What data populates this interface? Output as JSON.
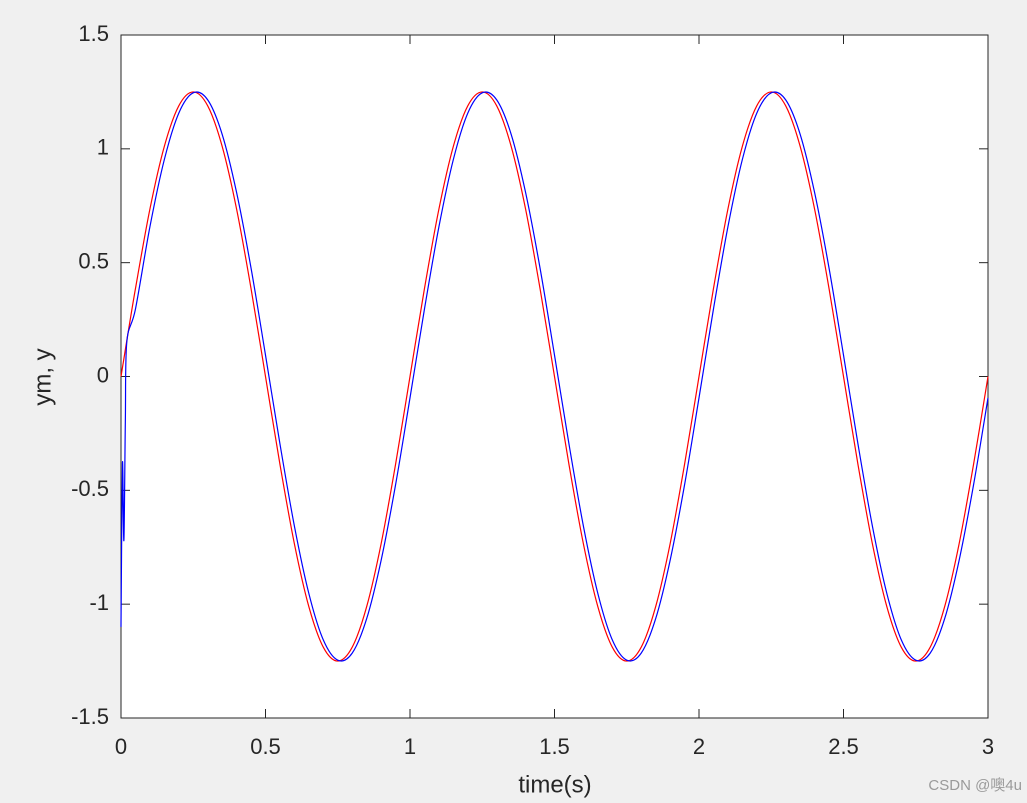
{
  "chart_data": {
    "type": "line",
    "x": [
      0,
      0.005,
      0.01,
      0.015,
      0.02,
      0.05,
      0.1,
      0.15,
      0.2,
      0.25,
      0.3,
      0.35,
      0.4,
      0.45,
      0.5,
      0.55,
      0.6,
      0.65,
      0.7,
      0.75,
      0.8,
      0.85,
      0.9,
      0.95,
      1,
      1.05,
      1.1,
      1.15,
      1.2,
      1.25,
      1.3,
      1.35,
      1.4,
      1.45,
      1.5,
      1.55,
      1.6,
      1.65,
      1.7,
      1.75,
      1.8,
      1.85,
      1.9,
      1.95,
      2,
      2.05,
      2.1,
      2.15,
      2.2,
      2.25,
      2.3,
      2.35,
      2.4,
      2.45,
      2.5,
      2.55,
      2.6,
      2.65,
      2.7,
      2.75,
      2.8,
      2.85,
      2.9,
      2.95,
      3
    ],
    "series": [
      {
        "color": "#ff0000",
        "values": [
          0,
          0.039,
          0.078,
          0.118,
          0.157,
          0.386,
          0.735,
          1.011,
          1.189,
          1.25,
          1.189,
          1.011,
          0.735,
          0.386,
          0,
          -0.386,
          -0.735,
          -1.011,
          -1.189,
          -1.25,
          -1.189,
          -1.011,
          -0.735,
          -0.386,
          0,
          0.386,
          0.735,
          1.011,
          1.189,
          1.25,
          1.189,
          1.011,
          0.735,
          0.386,
          0,
          -0.386,
          -0.735,
          -1.011,
          -1.189,
          -1.25,
          -1.189,
          -1.011,
          -0.735,
          -0.386,
          0,
          0.386,
          0.735,
          1.011,
          1.189,
          1.25,
          1.189,
          1.011,
          0.735,
          0.386,
          0,
          -0.386,
          -0.735,
          -1.011,
          -1.189,
          -1.25,
          -1.189,
          -1.011,
          -0.735,
          -0.386,
          0
        ]
      },
      {
        "color": "#0000ff",
        "values": [
          -1.1,
          -0.38,
          -0.72,
          -0.2,
          0.15,
          0.296,
          0.657,
          0.953,
          1.157,
          1.246,
          1.215,
          1.064,
          0.808,
          0.476,
          0.094,
          -0.296,
          -0.657,
          -0.953,
          -1.157,
          -1.246,
          -1.215,
          -1.064,
          -0.808,
          -0.476,
          -0.094,
          0.296,
          0.657,
          0.953,
          1.157,
          1.246,
          1.215,
          1.064,
          0.808,
          0.476,
          0.094,
          -0.296,
          -0.657,
          -0.953,
          -1.157,
          -1.246,
          -1.215,
          -1.064,
          -0.808,
          -0.476,
          -0.094,
          0.296,
          0.657,
          0.953,
          1.157,
          1.246,
          1.215,
          1.064,
          0.808,
          0.476,
          0.094,
          -0.296,
          -0.657,
          -0.953,
          -1.157,
          -1.246,
          -1.215,
          -1.064,
          -0.808,
          -0.476,
          -0.094
        ]
      }
    ],
    "xlabel": "time(s)",
    "ylabel": "ym, y",
    "xlim": [
      0,
      3
    ],
    "xticks": [
      0,
      0.5,
      1,
      1.5,
      2,
      2.5,
      3
    ],
    "ylim": [
      -1.5,
      1.5
    ],
    "yticks": [
      -1.5,
      -1,
      -0.5,
      0,
      0.5,
      1,
      1.5
    ],
    "grid": false,
    "watermark": "CSDN @噢4u"
  }
}
